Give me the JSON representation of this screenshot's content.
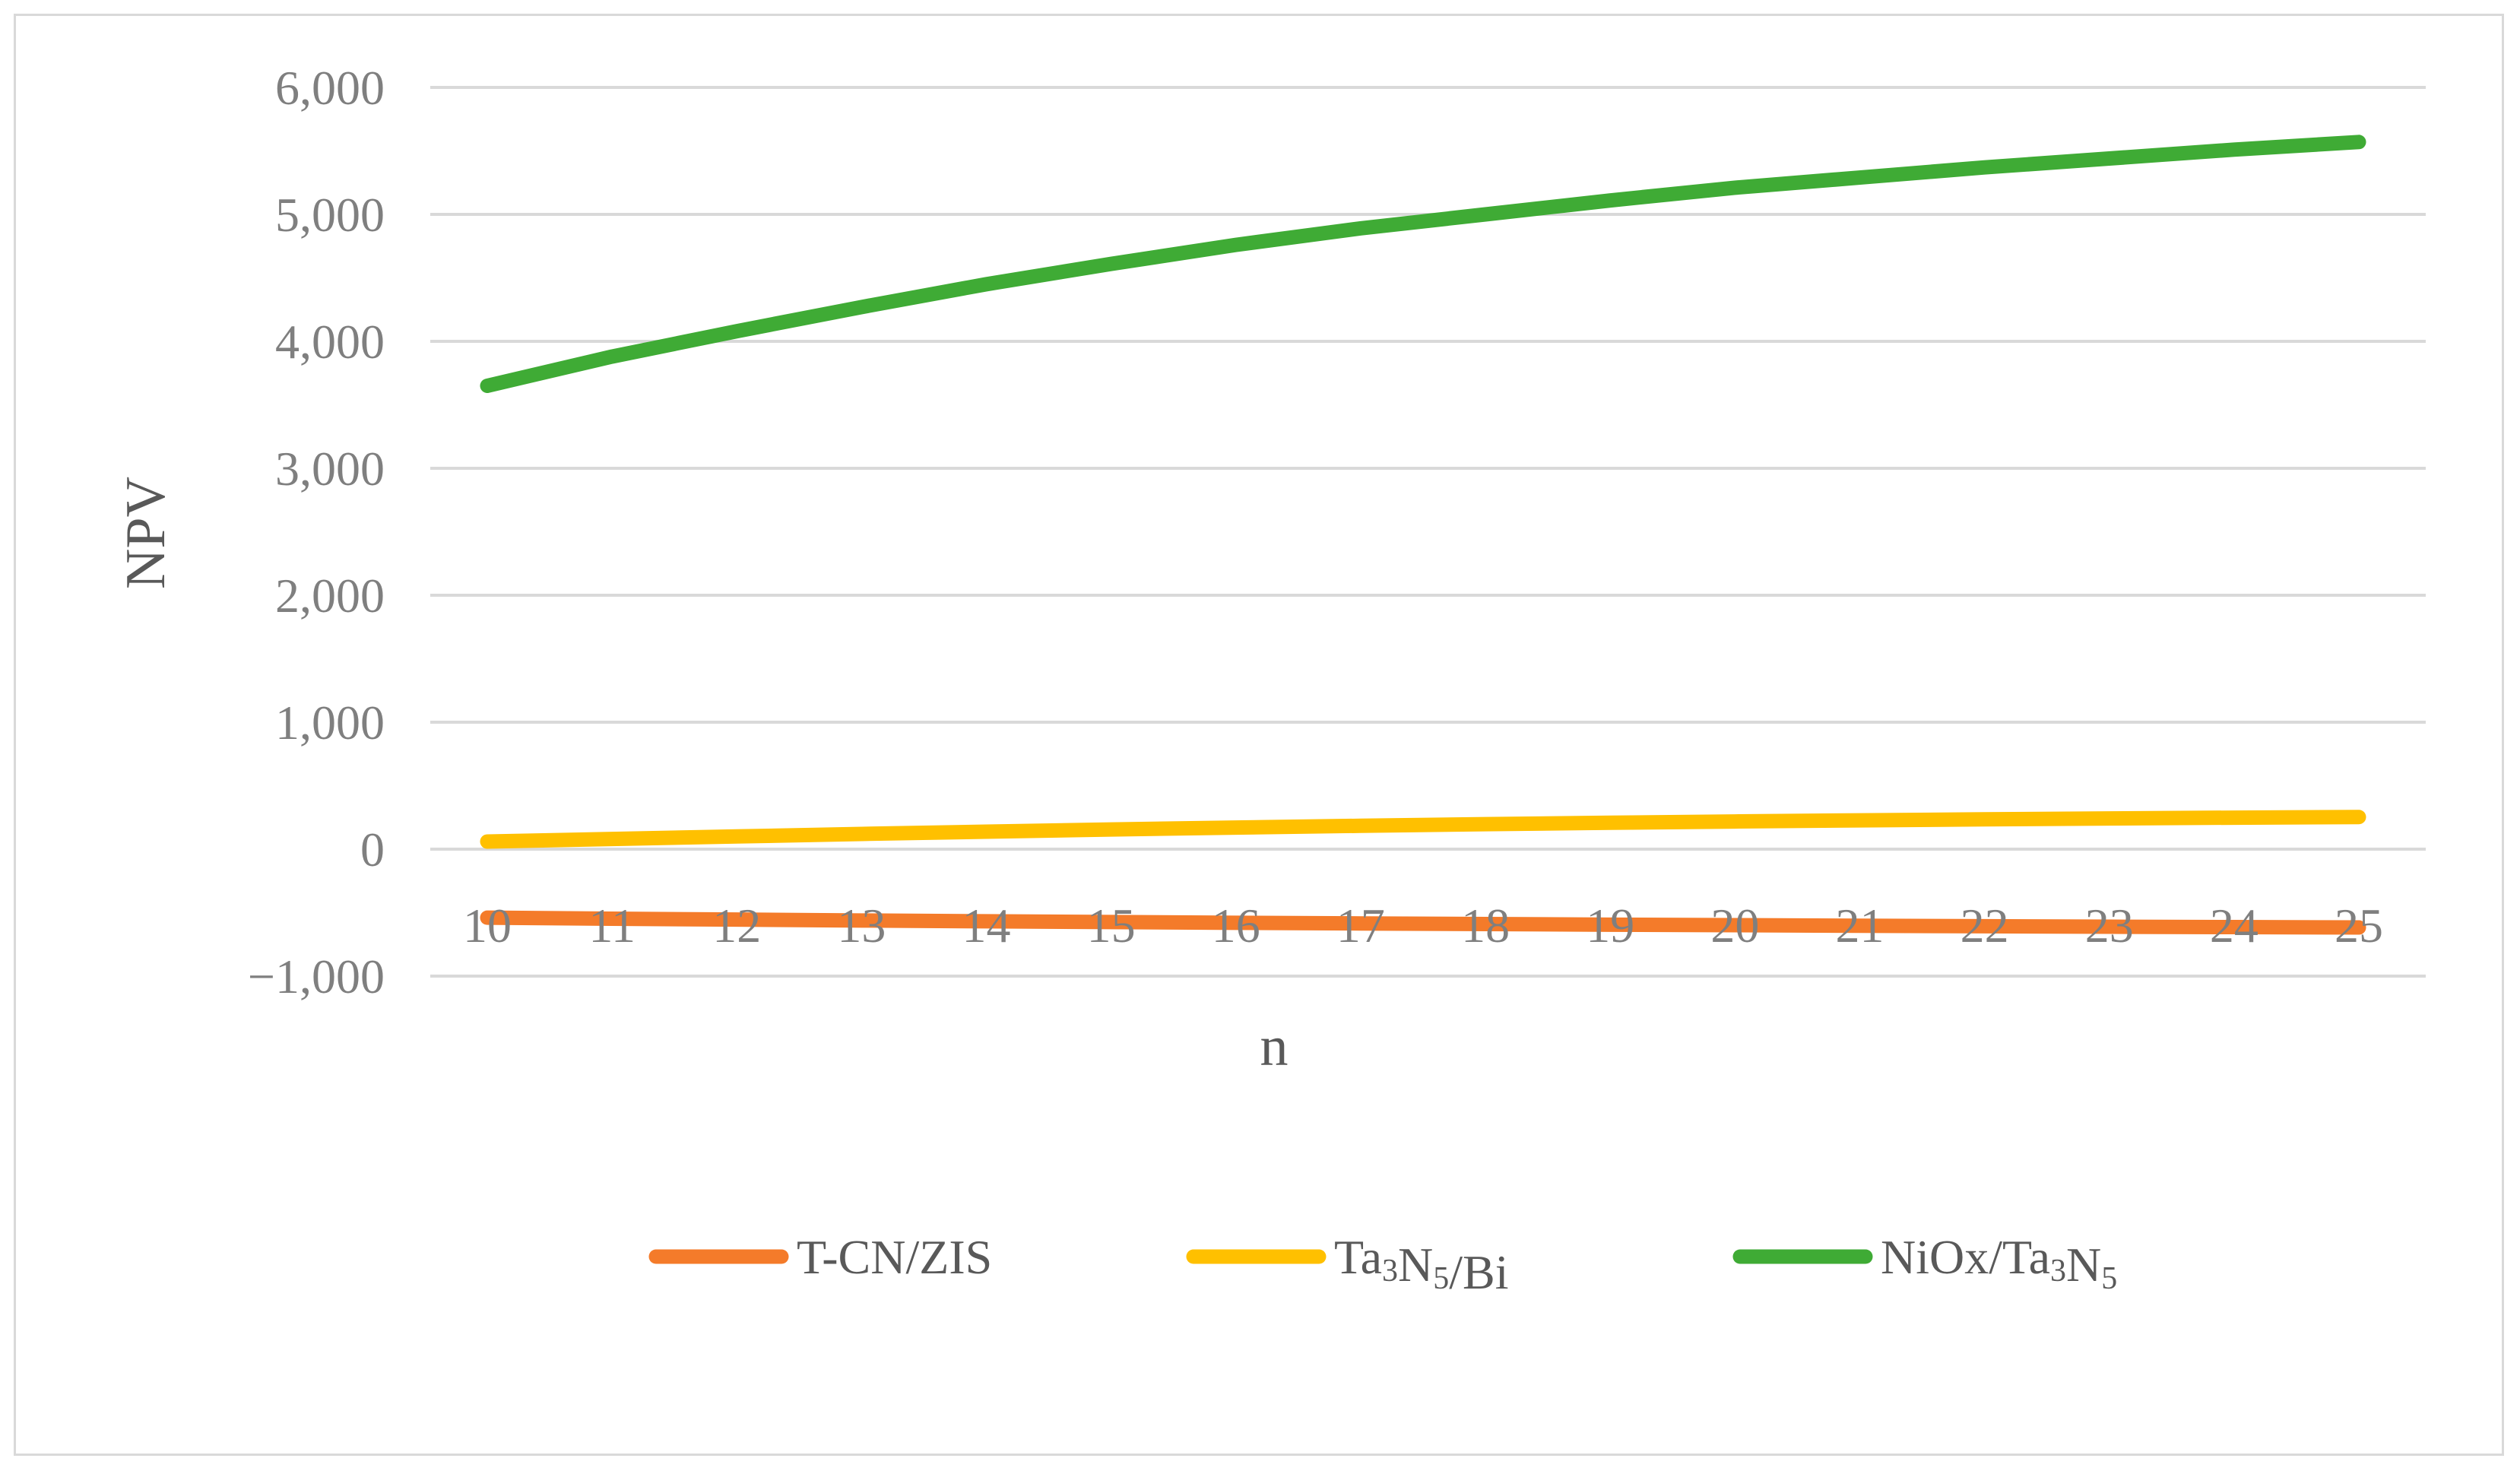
{
  "chart_data": {
    "type": "line",
    "title": "",
    "xlabel": "n",
    "ylabel": "NPV",
    "ylim": [
      -1000,
      6000
    ],
    "y_ticks": [
      -1000,
      0,
      1000,
      2000,
      3000,
      4000,
      5000,
      6000
    ],
    "y_tick_labels": [
      "−1,000",
      "0",
      "1,000",
      "2,000",
      "3,000",
      "4,000",
      "5,000",
      "6,000"
    ],
    "x": [
      10,
      11,
      12,
      13,
      14,
      15,
      16,
      17,
      18,
      19,
      20,
      21,
      22,
      23,
      24,
      25
    ],
    "x_tick_labels": [
      "10",
      "11",
      "12",
      "13",
      "14",
      "15",
      "16",
      "17",
      "18",
      "19",
      "20",
      "21",
      "22",
      "23",
      "24",
      "25"
    ],
    "grid": true,
    "legend_position": "bottom",
    "series": [
      {
        "name": "T-CN/ZIS",
        "legend_parts": [
          {
            "t": "T-CN/ZIS",
            "sub": false
          }
        ],
        "color": "#f47b2a",
        "values": [
          -540,
          -548,
          -555,
          -562,
          -568,
          -574,
          -580,
          -585,
          -590,
          -595,
          -599,
          -603,
          -607,
          -611,
          -614,
          -617
        ]
      },
      {
        "name": "Ta3N5/Bi",
        "legend_parts": [
          {
            "t": "Ta",
            "sub": false
          },
          {
            "t": "3",
            "sub": true
          },
          {
            "t": "N",
            "sub": false
          },
          {
            "t": "5",
            "sub": true
          },
          {
            "t": "/Bi",
            "sub": false
          }
        ],
        "color": "#ffc000",
        "values": [
          60,
          80,
          100,
          120,
          138,
          155,
          170,
          184,
          197,
          208,
          218,
          227,
          235,
          242,
          248,
          253
        ]
      },
      {
        "name": "NiOx/Ta3N5",
        "legend_parts": [
          {
            "t": "NiOx/Ta",
            "sub": false
          },
          {
            "t": "3",
            "sub": true
          },
          {
            "t": "N",
            "sub": false
          },
          {
            "t": "5",
            "sub": true
          }
        ],
        "color": "#3fab35",
        "values": [
          3650,
          3880,
          4080,
          4270,
          4450,
          4610,
          4760,
          4890,
          5000,
          5110,
          5210,
          5290,
          5370,
          5440,
          5510,
          5570
        ]
      }
    ]
  }
}
